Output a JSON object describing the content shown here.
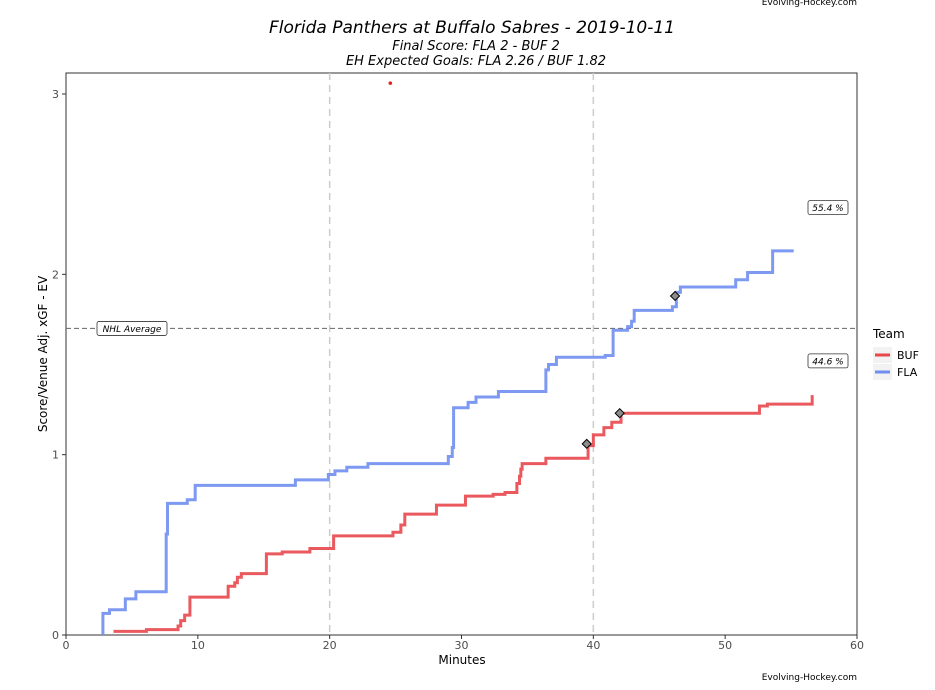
{
  "credit_top": "Evolving-Hockey.com",
  "credit_bottom": "Evolving-Hockey.com",
  "chart_data": {
    "type": "line",
    "title": "Florida Panthers at Buffalo Sabres - 2019-10-11",
    "subtitle_1": "Final Score: FLA 2 - BUF 2",
    "subtitle_2": "EH Expected Goals: FLA 2.26 / BUF 1.82",
    "xlabel": "Minutes",
    "ylabel": "Score/Venue Adj. xGF - EV",
    "xlim": [
      0,
      60
    ],
    "ylim": [
      0,
      3.2
    ],
    "x_ticks": [
      "0",
      "10",
      "20",
      "30",
      "40",
      "50",
      "60"
    ],
    "y_ticks": [
      "0",
      "1",
      "2",
      "3"
    ],
    "period_lines": [
      20,
      40
    ],
    "reference_line": {
      "label": "NHL Average",
      "value": 1.7
    },
    "legend": {
      "title": "Team",
      "position": "right"
    },
    "series": [
      {
        "name": "BUF",
        "color": "#e8474c",
        "step": [
          [
            3.6,
            0.02
          ],
          [
            6.1,
            0.03
          ],
          [
            8.5,
            0.05
          ],
          [
            8.7,
            0.08
          ],
          [
            9.0,
            0.11
          ],
          [
            9.4,
            0.21
          ],
          [
            12.3,
            0.27
          ],
          [
            12.8,
            0.29
          ],
          [
            13.0,
            0.32
          ],
          [
            13.3,
            0.34
          ],
          [
            15.2,
            0.45
          ],
          [
            16.4,
            0.46
          ],
          [
            18.5,
            0.48
          ],
          [
            20.3,
            0.55
          ],
          [
            24.8,
            0.57
          ],
          [
            25.4,
            0.61
          ],
          [
            25.7,
            0.67
          ],
          [
            28.1,
            0.72
          ],
          [
            30.3,
            0.77
          ],
          [
            32.4,
            0.78
          ],
          [
            33.3,
            0.79
          ],
          [
            34.2,
            0.84
          ],
          [
            34.4,
            0.88
          ],
          [
            34.5,
            0.92
          ],
          [
            34.6,
            0.95
          ],
          [
            36.4,
            0.98
          ],
          [
            39.6,
            1.05
          ],
          [
            40.0,
            1.11
          ],
          [
            40.8,
            1.15
          ],
          [
            41.4,
            1.18
          ],
          [
            42.1,
            1.23
          ],
          [
            52.6,
            1.27
          ],
          [
            53.2,
            1.28
          ],
          [
            56.6,
            1.33
          ]
        ],
        "goals": [
          [
            39.5,
            1.06
          ],
          [
            42.0,
            1.23
          ]
        ],
        "share_label": "44.6 %",
        "share_value": 1.52
      },
      {
        "name": "FLA",
        "color": "#6f8ef0",
        "step": [
          [
            2.8,
            0.0
          ],
          [
            2.8,
            0.12
          ],
          [
            3.3,
            0.14
          ],
          [
            4.5,
            0.2
          ],
          [
            5.3,
            0.24
          ],
          [
            7.6,
            0.27
          ],
          [
            7.6,
            0.56
          ],
          [
            7.7,
            0.73
          ],
          [
            9.2,
            0.75
          ],
          [
            9.8,
            0.83
          ],
          [
            17.4,
            0.86
          ],
          [
            19.9,
            0.89
          ],
          [
            20.4,
            0.91
          ],
          [
            21.3,
            0.93
          ],
          [
            22.9,
            0.95
          ],
          [
            29.0,
            0.99
          ],
          [
            29.3,
            1.04
          ],
          [
            29.4,
            1.26
          ],
          [
            30.5,
            1.29
          ],
          [
            31.1,
            1.32
          ],
          [
            32.8,
            1.35
          ],
          [
            36.4,
            1.47
          ],
          [
            36.6,
            1.5
          ],
          [
            37.2,
            1.54
          ],
          [
            40.9,
            1.55
          ],
          [
            41.5,
            1.69
          ],
          [
            42.6,
            1.71
          ],
          [
            42.9,
            1.74
          ],
          [
            43.1,
            1.8
          ],
          [
            46.0,
            1.82
          ],
          [
            46.3,
            1.9
          ],
          [
            46.6,
            1.93
          ],
          [
            50.8,
            1.97
          ],
          [
            51.7,
            2.01
          ],
          [
            53.6,
            2.13
          ],
          [
            55.2,
            2.13
          ]
        ],
        "goals": [
          [
            46.2,
            1.88
          ]
        ],
        "share_label": "55.4 %",
        "share_value": 2.37
      }
    ],
    "outlier_point": {
      "x": 24.6,
      "y": 3.06,
      "color": "#e8221a"
    }
  }
}
